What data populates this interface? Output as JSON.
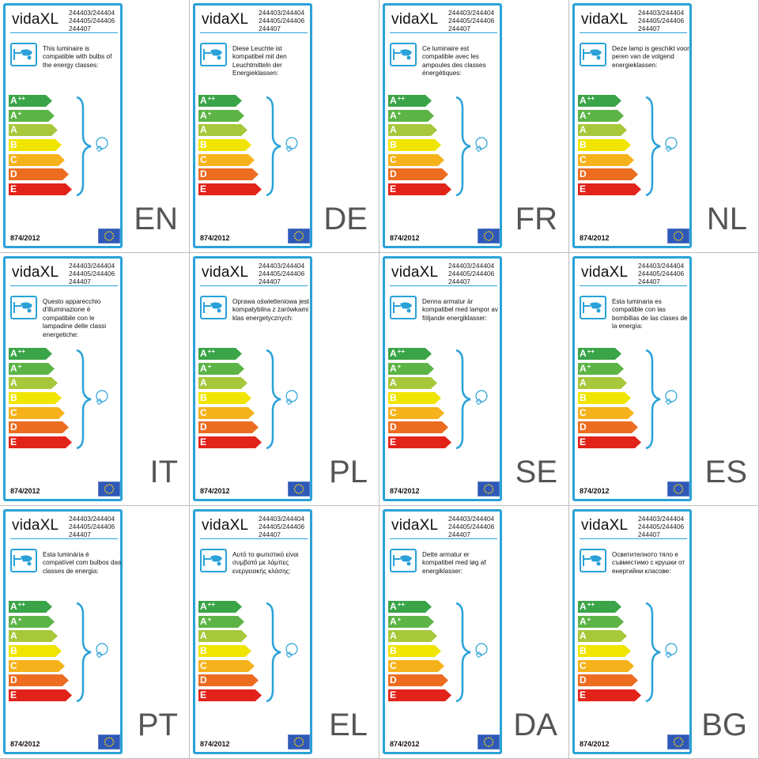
{
  "brand": "vidaXL",
  "product_codes": [
    "244403/244404",
    "244405/244406",
    "244407"
  ],
  "regulation": "874/2012",
  "energy_classes": [
    {
      "letter": "A",
      "sup": "++",
      "color": "#3aa448",
      "width": 0.62
    },
    {
      "letter": "A",
      "sup": "+",
      "color": "#5cb446",
      "width": 0.66
    },
    {
      "letter": "A",
      "sup": "",
      "color": "#a6c83a",
      "width": 0.71
    },
    {
      "letter": "B",
      "sup": "",
      "color": "#f0e500",
      "width": 0.76
    },
    {
      "letter": "C",
      "sup": "",
      "color": "#f6b21a",
      "width": 0.81
    },
    {
      "letter": "D",
      "sup": "",
      "color": "#ec6c20",
      "width": 0.86
    },
    {
      "letter": "E",
      "sup": "",
      "color": "#e2231a",
      "width": 0.91
    }
  ],
  "accent_color": "#2aa2d8",
  "labels": [
    {
      "lang": "EN",
      "text": "This luminaire is compatible with bulbs of the energy classes:"
    },
    {
      "lang": "DE",
      "text": "Diese Leuchte ist kompatibel mit den Leuchtmitteln der Energieklassen:"
    },
    {
      "lang": "FR",
      "text": "Ce luminaire est compatible avec les ampoules des classes énergétiques:"
    },
    {
      "lang": "NL",
      "text": "Deze lamp is geschikt voor peren van de volgend energieklassen:"
    },
    {
      "lang": "IT",
      "text": "Questo apparecchio d'illuminazione è compatibile con le lampadine delle classi energetiche:"
    },
    {
      "lang": "PL",
      "text": "Oprawa oświetleniowa jest kompatybilna z żarówkami klas energetycznych:"
    },
    {
      "lang": "SE",
      "text": "Denna armatur är kompatibel med lampor av följande energiklasser:"
    },
    {
      "lang": "ES",
      "text": "Esta luminaria es compatible con las bombillas de las clases de la energía:"
    },
    {
      "lang": "PT",
      "text": "Esta luminária é compatível com bulbos das classes de energia:"
    },
    {
      "lang": "EL",
      "text": "Αυτό το φωτιστικό είναι συμβατό με λάμπες ενεργειακής κλάσης:"
    },
    {
      "lang": "DA",
      "text": "Dette armatur er kompatibel med løg af energiklasser:"
    },
    {
      "lang": "BG",
      "text": "Осветителното тяло е съвместимо с крушки от енергийни класове:"
    }
  ]
}
